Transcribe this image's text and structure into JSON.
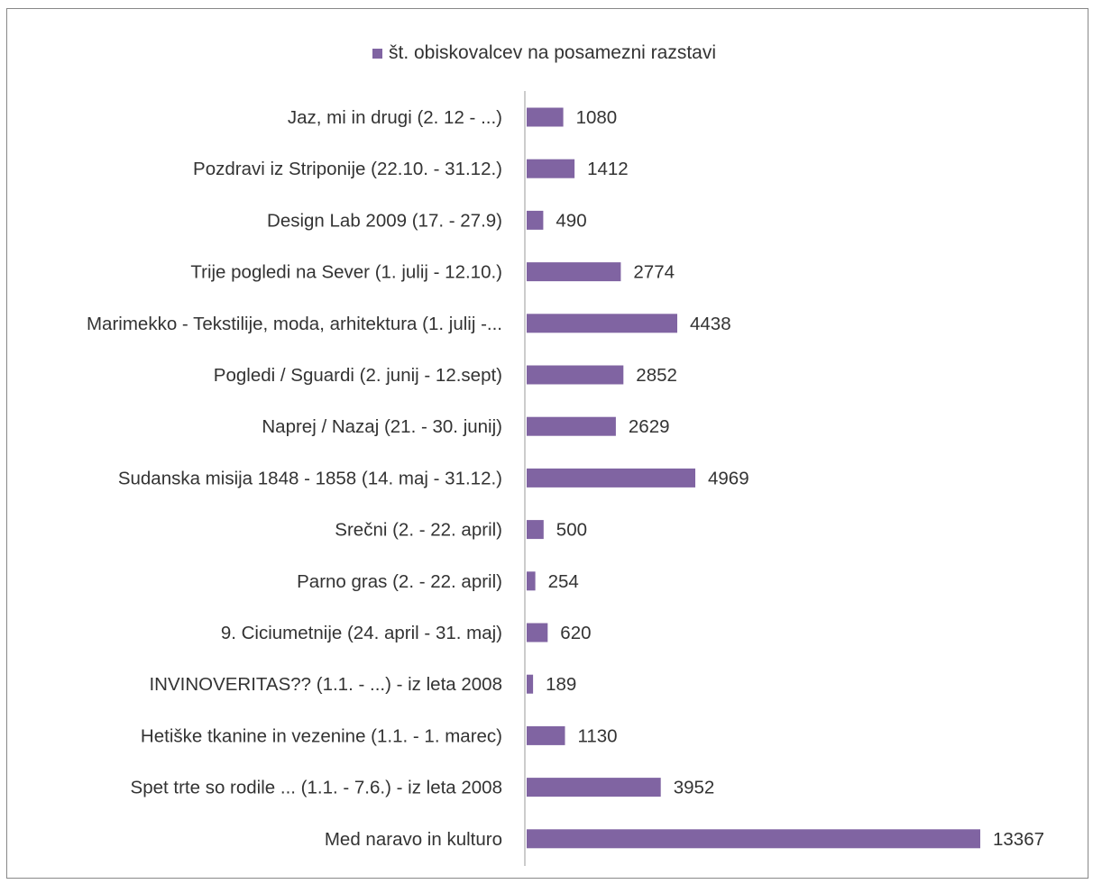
{
  "chart_data": {
    "type": "bar",
    "orientation": "horizontal",
    "categories": [
      "Jaz, mi in drugi (2. 12 - ...)",
      "Pozdravi iz Striponije (22.10. - 31.12.)",
      "Design Lab 2009 (17. - 27.9)",
      "Trije pogledi na Sever (1. julij - 12.10.)",
      "Marimekko - Tekstilije, moda, arhitektura (1. julij -...",
      "Pogledi / Sguardi (2. junij - 12.sept)",
      "Naprej / Nazaj (21. - 30. junij)",
      "Sudanska misija 1848 - 1858 (14. maj - 31.12.)",
      "Srečni (2.  - 22. april)",
      "Parno gras (2. - 22. april)",
      "9. Ciciumetnije (24. april - 31. maj)",
      "INVINOVERITAS?? (1.1. - ...) - iz leta 2008",
      "Hetiške tkanine in vezenine (1.1. - 1. marec)",
      "Spet trte so rodile ... (1.1. - 7.6.) - iz leta 2008",
      "Med naravo in kulturo"
    ],
    "series": [
      {
        "name": "št. obiskovalcev na posamezni razstavi",
        "values": [
          1080,
          1412,
          490,
          2774,
          4438,
          2852,
          2629,
          4969,
          500,
          254,
          620,
          189,
          1130,
          3952,
          13367
        ],
        "value_labels": [
          "1080",
          "1412",
          "490",
          "2774",
          "4438",
          "2852",
          "2629",
          "4969",
          "500",
          "254",
          "620",
          "189",
          "1130",
          "3952",
          "13367"
        ],
        "color": "#8064A2"
      }
    ],
    "xlim": [
      0,
      13367
    ],
    "legend_position": "top",
    "grid": false,
    "title": "",
    "xlabel": "",
    "ylabel": ""
  }
}
